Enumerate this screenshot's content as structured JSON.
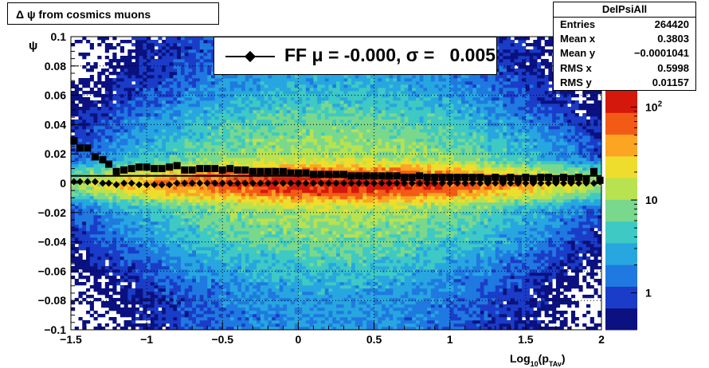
{
  "title": "Δ ψ from cosmics muons",
  "stats": {
    "name": "DelPsiAll",
    "rows": [
      {
        "key": "Entries",
        "value": "264420"
      },
      {
        "key": "Mean x",
        "value": "0.3803"
      },
      {
        "key": "Mean y",
        "value": "−0.0001041"
      },
      {
        "key": "RMS x",
        "value": "0.5998"
      },
      {
        "key": "RMS y",
        "value": "0.01157"
      }
    ]
  },
  "legend": {
    "label": "FF μ = -0.000, σ =   0.005"
  },
  "colors": {
    "frame": "#000000",
    "grid": "#000000",
    "background": "#ffffff"
  },
  "chart_data": {
    "type": "heatmap",
    "title": "Δ ψ from cosmics muons",
    "xlabel_main": "Log",
    "xlabel_sub1": "10",
    "xlabel_paren_open": "(p",
    "xlabel_sub2": "TAv",
    "xlabel_paren_close": ")",
    "ylabel": "ψ",
    "xlim": [
      -1.5,
      2
    ],
    "ylim": [
      -0.1,
      0.1
    ],
    "grid": true,
    "log_z": true,
    "x_ticks": [
      {
        "v": -1.5,
        "label": "−1.5"
      },
      {
        "v": -1,
        "label": "−1"
      },
      {
        "v": -0.5,
        "label": "−0.5"
      },
      {
        "v": 0,
        "label": "0"
      },
      {
        "v": 0.5,
        "label": "0.5"
      },
      {
        "v": 1,
        "label": "1"
      },
      {
        "v": 1.5,
        "label": "1.5"
      },
      {
        "v": 2,
        "label": "2"
      }
    ],
    "y_ticks": [
      {
        "v": 0.1,
        "label": "0.1"
      },
      {
        "v": 0.08,
        "label": "0.08"
      },
      {
        "v": 0.06,
        "label": "0.06"
      },
      {
        "v": 0.04,
        "label": "0.04"
      },
      {
        "v": 0.02,
        "label": "0.02"
      },
      {
        "v": 0,
        "label": "0"
      },
      {
        "v": -0.02,
        "label": "−0.02"
      },
      {
        "v": -0.04,
        "label": "−0.04"
      },
      {
        "v": -0.06,
        "label": "−0.06"
      },
      {
        "v": -0.08,
        "label": "−0.08"
      },
      {
        "v": -0.1,
        "label": "−0.1"
      }
    ],
    "z_ticks": [
      {
        "v": 1,
        "label": "1"
      },
      {
        "v": 10,
        "label": "10"
      },
      {
        "v": 100,
        "label": "10",
        "sup": "2"
      }
    ],
    "zlim": [
      0.4,
      150
    ],
    "palette": [
      "#0b1180",
      "#1a3cc8",
      "#1f79e0",
      "#27a6e0",
      "#3ec9c4",
      "#7ad88c",
      "#b8e250",
      "#eedd2c",
      "#fba523",
      "#f35a16",
      "#d4180c"
    ],
    "density": {
      "x_peak": 0.25,
      "x_width": 0.75,
      "y_core_width": 0.006,
      "y_tail_width": 0.03,
      "peak_count": 150
    },
    "series": [
      {
        "marker": "square",
        "x": [
          -1.48,
          -1.44,
          -1.39,
          -1.34,
          -1.29,
          -1.25,
          -1.2,
          -1.15,
          -1.1,
          -1.05,
          -1.0,
          -0.95,
          -0.9,
          -0.85,
          -0.8,
          -0.75,
          -0.7,
          -0.65,
          -0.6,
          -0.55,
          -0.5,
          -0.45,
          -0.4,
          -0.35,
          -0.3,
          -0.25,
          -0.2,
          -0.15,
          -0.1,
          -0.05,
          0.0,
          0.05,
          0.1,
          0.15,
          0.2,
          0.25,
          0.3,
          0.35,
          0.4,
          0.45,
          0.5,
          0.55,
          0.6,
          0.65,
          0.7,
          0.75,
          0.8,
          0.85,
          0.9,
          0.95,
          1.0,
          1.05,
          1.1,
          1.15,
          1.2,
          1.25,
          1.3,
          1.35,
          1.4,
          1.45,
          1.5,
          1.55,
          1.6,
          1.65,
          1.7,
          1.75,
          1.8,
          1.85,
          1.9,
          1.95,
          1.99
        ],
        "y": [
          0.029,
          0.024,
          0.024,
          0.018,
          0.016,
          0.013,
          0.008,
          0.009,
          0.01,
          0.011,
          0.011,
          0.01,
          0.01,
          0.011,
          0.012,
          0.009,
          0.009,
          0.01,
          0.01,
          0.01,
          0.009,
          0.01,
          0.009,
          0.009,
          0.008,
          0.008,
          0.008,
          0.008,
          0.008,
          0.007,
          0.007,
          0.007,
          0.006,
          0.006,
          0.006,
          0.006,
          0.006,
          0.005,
          0.005,
          0.005,
          0.005,
          0.005,
          0.005,
          0.005,
          0.004,
          0.004,
          0.005,
          0.004,
          0.004,
          0.004,
          0.004,
          0.004,
          0.004,
          0.004,
          0.004,
          0.003,
          0.004,
          0.003,
          0.004,
          0.003,
          0.004,
          0.003,
          0.004,
          0.004,
          0.003,
          0.004,
          0.003,
          0.004,
          0.003,
          0.008,
          0.002
        ]
      },
      {
        "marker": "diamond",
        "name": "FF",
        "x": [
          -1.48,
          -1.44,
          -1.39,
          -1.34,
          -1.29,
          -1.25,
          -1.2,
          -1.15,
          -1.1,
          -1.05,
          -1.0,
          -0.95,
          -0.9,
          -0.85,
          -0.8,
          -0.75,
          -0.7,
          -0.65,
          -0.6,
          -0.55,
          -0.5,
          -0.45,
          -0.4,
          -0.35,
          -0.3,
          -0.25,
          -0.2,
          -0.15,
          -0.1,
          -0.05,
          0.0,
          0.05,
          0.1,
          0.15,
          0.2,
          0.25,
          0.3,
          0.35,
          0.4,
          0.45,
          0.5,
          0.55,
          0.6,
          0.65,
          0.7,
          0.75,
          0.8,
          0.85,
          0.9,
          0.95,
          1.0,
          1.05,
          1.1,
          1.15,
          1.2,
          1.25,
          1.3,
          1.35,
          1.4,
          1.45,
          1.5,
          1.55,
          1.6,
          1.65,
          1.7,
          1.75,
          1.8,
          1.85,
          1.9,
          1.95,
          1.99
        ],
        "y": [
          0.001,
          0.001,
          0.001,
          0.001,
          0.0,
          0.0,
          -0.001,
          0.0,
          0.0,
          -0.001,
          -0.001,
          -0.001,
          -0.001,
          -0.001,
          0.0,
          0.0,
          0.0,
          0.0,
          0.0,
          0.0,
          0.0,
          0.0,
          0.0,
          0.0,
          0.0,
          0.0,
          0.0,
          0.0,
          0.0,
          0.0,
          0.0,
          0.0,
          0.0,
          0.0,
          0.0,
          0.0,
          0.0,
          0.0,
          0.0,
          0.0,
          0.0,
          0.0,
          0.0,
          0.0,
          0.0,
          0.0,
          0.0,
          0.0,
          0.0,
          0.0,
          0.0,
          0.0,
          0.0,
          0.0,
          0.0,
          0.0,
          0.0,
          0.0,
          0.0,
          0.0,
          0.0,
          0.0,
          0.0,
          0.0,
          0.0,
          0.0,
          0.0,
          0.0,
          0.0,
          0.0,
          0.001
        ]
      }
    ]
  }
}
